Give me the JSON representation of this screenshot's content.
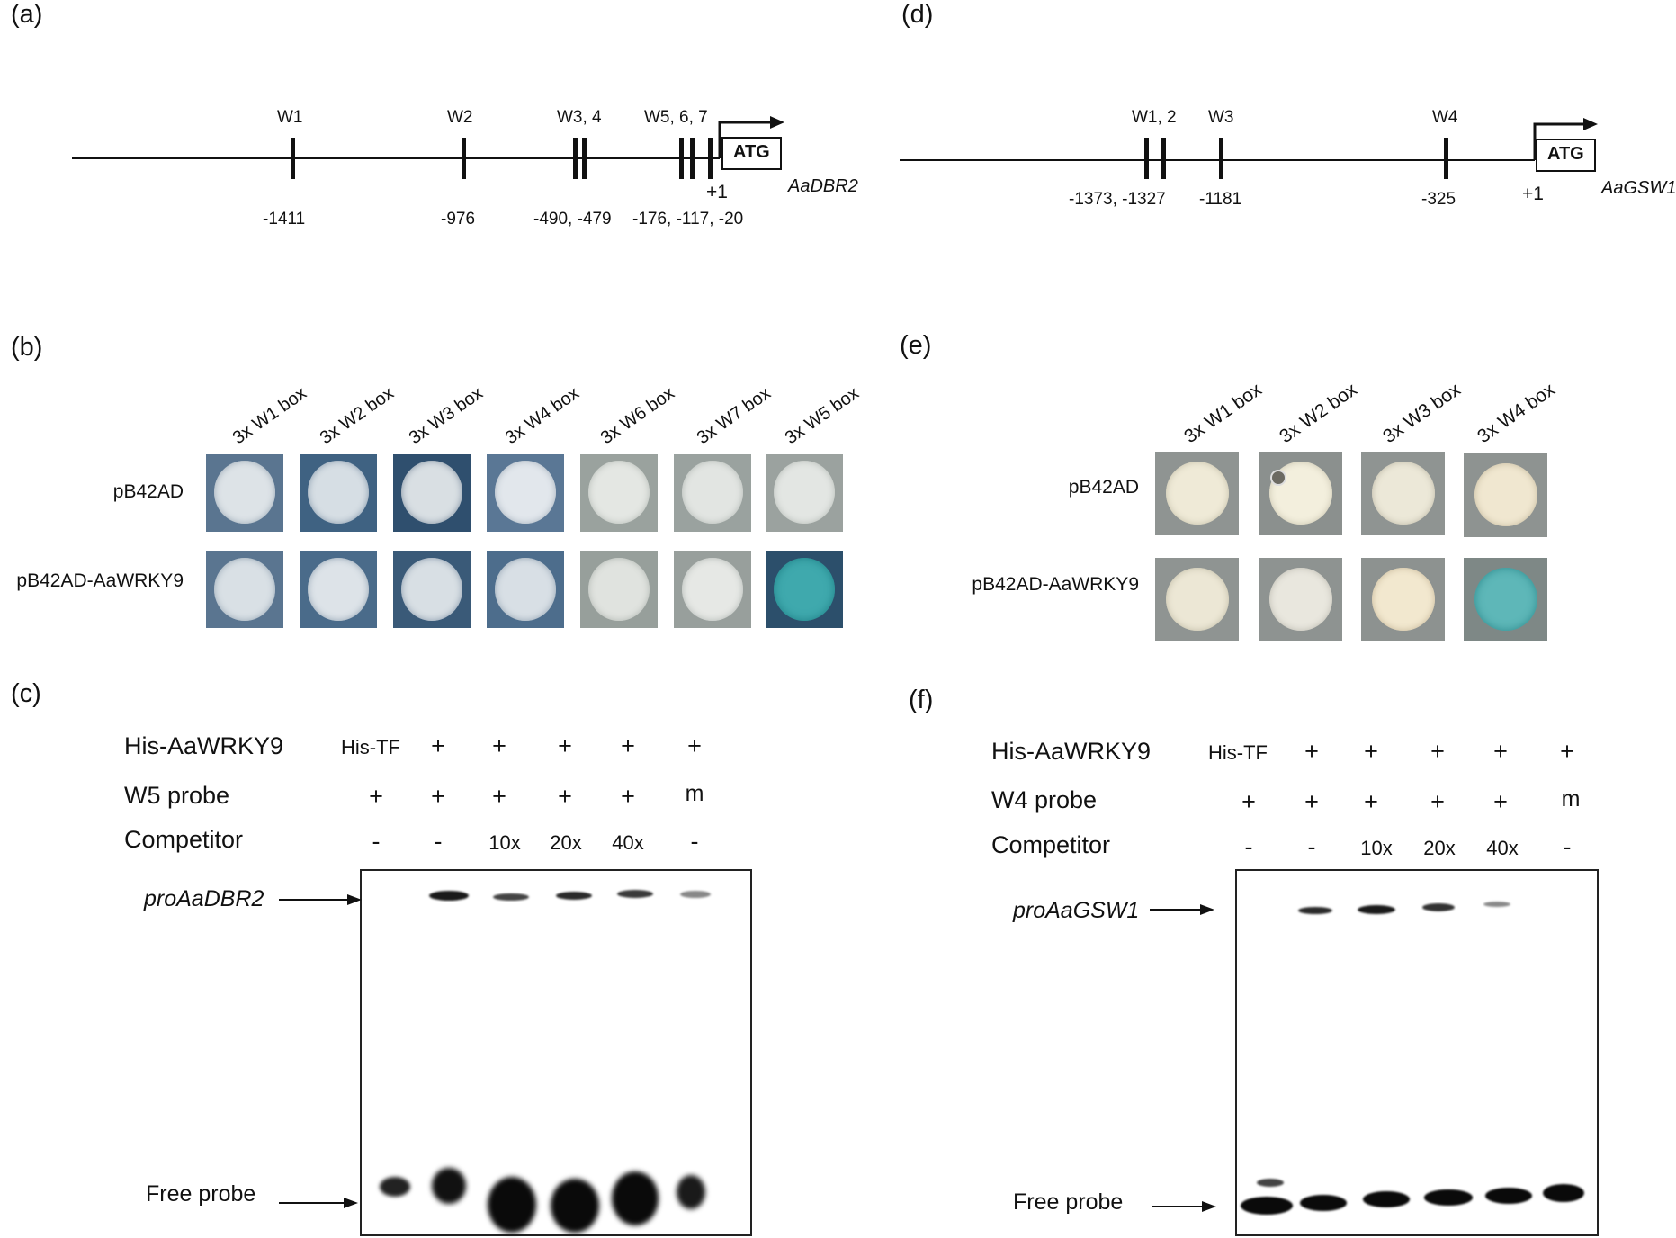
{
  "panels": {
    "a": {
      "label": "(a)",
      "sites": [
        "W1",
        "W2",
        "W3, 4",
        "W5, 6, 7"
      ],
      "positions": [
        "-1411",
        "-976",
        "-490, -479",
        "-176, -117, -20"
      ],
      "tss": "+1",
      "atg": "ATG",
      "gene": "AaDBR2"
    },
    "d": {
      "label": "(d)",
      "sites": [
        "W1, 2",
        "W3",
        "W4"
      ],
      "positions": [
        "-1373, -1327",
        "-1181",
        "-325"
      ],
      "tss": "+1",
      "atg": "ATG",
      "gene": "AaGSW1"
    },
    "b": {
      "label": "(b)",
      "columns": [
        "3x W1 box",
        "3x W2 box",
        "3x W3 box",
        "3x W4 box",
        "3x W6 box",
        "3x W7 box",
        "3x W5 box"
      ],
      "rows": [
        "pB42AD",
        "pB42AD-AaWRKY9"
      ]
    },
    "e": {
      "label": "(e)",
      "columns": [
        "3x W1 box",
        "3x W2 box",
        "3x W3 box",
        "3x W4 box"
      ],
      "rows": [
        "pB42AD",
        "pB42AD-AaWRKY9"
      ]
    },
    "c": {
      "label": "(c)",
      "row_labels": [
        "His-AaWRKY9",
        "W5 probe",
        "Competitor"
      ],
      "lanes": [
        [
          "His-TF",
          "+",
          "+",
          "+",
          "+",
          "+"
        ],
        [
          "+",
          "+",
          "+",
          "+",
          "+",
          "m"
        ],
        [
          "-",
          "-",
          "10x",
          "20x",
          "40x",
          "-"
        ]
      ],
      "band_label": "proAaDBR2",
      "free_label": "Free probe"
    },
    "f": {
      "label": "(f)",
      "row_labels": [
        "His-AaWRKY9",
        "W4 probe",
        "Competitor"
      ],
      "lanes": [
        [
          "His-TF",
          "+",
          "+",
          "+",
          "+",
          "+"
        ],
        [
          "+",
          "+",
          "+",
          "+",
          "+",
          "m"
        ],
        [
          "-",
          "-",
          "10x",
          "20x",
          "40x",
          "-"
        ]
      ],
      "band_label": "proAaGSW1",
      "free_label": "Free probe"
    }
  },
  "colors": {
    "line": "#111111",
    "plate_blue": "#4a6e8e",
    "plate_grey": "#8e9693",
    "colony_white": "#e6e9ea",
    "colony_cream": "#f1ecd8",
    "colony_positive": "#3aa6a9"
  }
}
